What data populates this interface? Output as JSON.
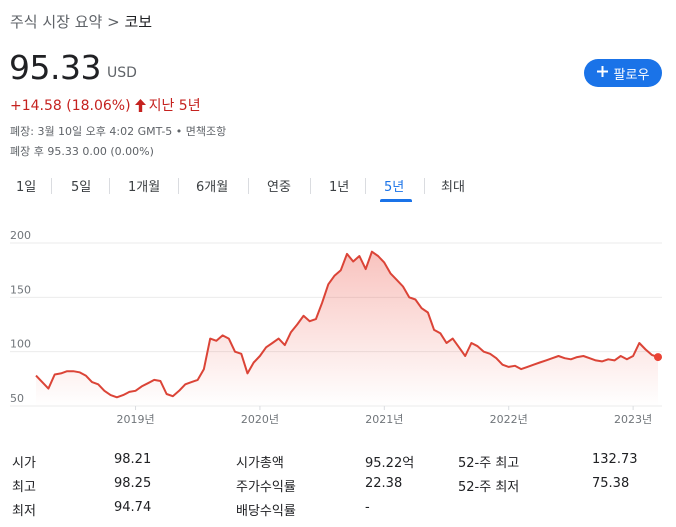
{
  "breadcrumb": {
    "parent": "주식 시장 요약",
    "separator": " > ",
    "current": "코보"
  },
  "quote": {
    "price": "95.33",
    "currency": "USD",
    "change": "+14.58 (18.06%)",
    "period": "지난 5년",
    "market_close": "폐장: 3월 10일 오후 4:02 GMT-5 • 면책조항",
    "after_hours": "폐장 후 95.33 0.00 (0.00%)"
  },
  "follow_button": {
    "label": "팔로우",
    "icon": "plus-icon"
  },
  "tabs": [
    {
      "label": "1일"
    },
    {
      "label": "5일"
    },
    {
      "label": "1개월"
    },
    {
      "label": "6개월"
    },
    {
      "label": "연중"
    },
    {
      "label": "1년"
    },
    {
      "label": "5년",
      "active": true
    },
    {
      "label": "최대"
    }
  ],
  "colors": {
    "line": "#db4437",
    "dot": "#ea4335",
    "accent": "#1a73e8",
    "down": "#c5221f"
  },
  "chart_data": {
    "type": "area",
    "yticks": [
      "200",
      "150",
      "100",
      "50"
    ],
    "ylim": [
      50,
      200
    ],
    "xlabels": [
      "2019년",
      "2020년",
      "2021년",
      "2022년",
      "2023년"
    ],
    "xlim": [
      2018.2,
      2023.2
    ],
    "grid": true,
    "x": [
      2018.2,
      2018.25,
      2018.3,
      2018.35,
      2018.4,
      2018.45,
      2018.5,
      2018.55,
      2018.6,
      2018.65,
      2018.7,
      2018.75,
      2018.8,
      2018.85,
      2018.9,
      2018.95,
      2019.0,
      2019.05,
      2019.1,
      2019.15,
      2019.2,
      2019.25,
      2019.3,
      2019.35,
      2019.4,
      2019.45,
      2019.5,
      2019.55,
      2019.6,
      2019.65,
      2019.7,
      2019.75,
      2019.8,
      2019.85,
      2019.9,
      2019.95,
      2020.0,
      2020.05,
      2020.1,
      2020.15,
      2020.2,
      2020.25,
      2020.3,
      2020.35,
      2020.4,
      2020.45,
      2020.5,
      2020.55,
      2020.6,
      2020.65,
      2020.7,
      2020.75,
      2020.8,
      2020.85,
      2020.9,
      2020.95,
      2021.0,
      2021.05,
      2021.1,
      2021.15,
      2021.2,
      2021.25,
      2021.3,
      2021.35,
      2021.4,
      2021.45,
      2021.5,
      2021.55,
      2021.6,
      2021.65,
      2021.7,
      2021.75,
      2021.8,
      2021.85,
      2021.9,
      2021.95,
      2022.0,
      2022.05,
      2022.1,
      2022.15,
      2022.2,
      2022.25,
      2022.3,
      2022.35,
      2022.4,
      2022.45,
      2022.5,
      2022.55,
      2022.6,
      2022.65,
      2022.7,
      2022.75,
      2022.8,
      2022.85,
      2022.9,
      2022.95,
      2023.0,
      2023.05,
      2023.1,
      2023.15,
      2023.2
    ],
    "values": [
      78,
      72,
      66,
      79,
      80,
      82,
      82,
      81,
      78,
      72,
      70,
      64,
      60,
      58,
      60,
      63,
      64,
      68,
      71,
      74,
      73,
      61,
      59,
      64,
      70,
      72,
      74,
      84,
      112,
      110,
      115,
      112,
      100,
      98,
      80,
      90,
      96,
      104,
      108,
      112,
      106,
      118,
      125,
      133,
      128,
      130,
      145,
      162,
      170,
      175,
      190,
      183,
      188,
      176,
      192,
      188,
      182,
      172,
      166,
      160,
      150,
      148,
      140,
      136,
      120,
      117,
      108,
      112,
      104,
      96,
      108,
      105,
      100,
      98,
      94,
      88,
      86,
      87,
      84,
      86,
      88,
      90,
      92,
      94,
      96,
      94,
      93,
      95,
      96,
      94,
      92,
      91,
      93,
      92,
      96,
      93,
      96,
      108,
      102,
      97,
      95
    ],
    "last_value": "95.33"
  },
  "stats": {
    "col1": [
      {
        "label": "시가",
        "value": "98.21"
      },
      {
        "label": "최고",
        "value": "98.25"
      },
      {
        "label": "최저",
        "value": "94.74"
      }
    ],
    "col2": [
      {
        "label": "시가총액",
        "value": "95.22억"
      },
      {
        "label": "주가수익률",
        "value": "22.38"
      },
      {
        "label": "배당수익률",
        "value": "-"
      }
    ],
    "col3": [
      {
        "label": "52-주 최고",
        "value": "132.73"
      },
      {
        "label": "52-주 최저",
        "value": "75.38"
      }
    ]
  }
}
